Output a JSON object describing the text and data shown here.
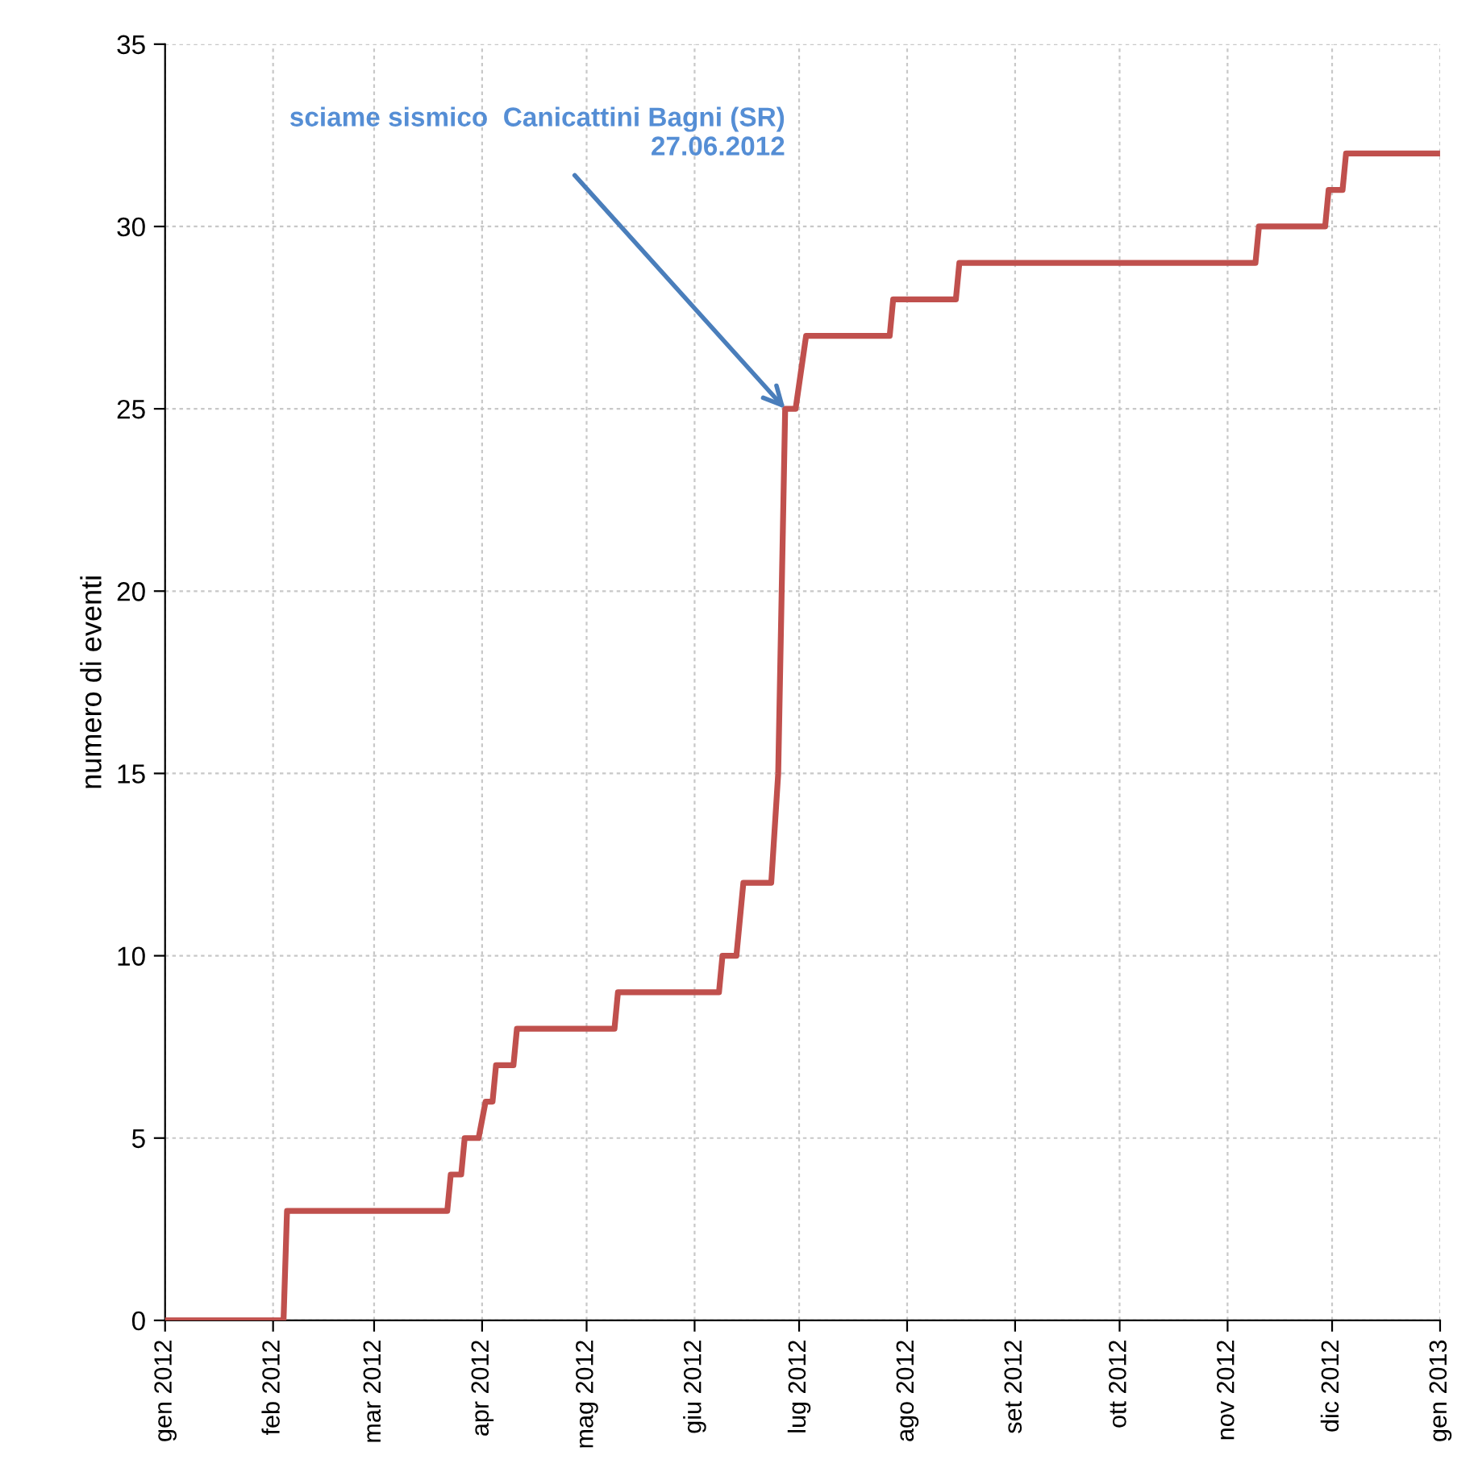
{
  "chart_data": {
    "type": "line",
    "ylabel": "numero di eventi",
    "x": [
      "2012-01-01",
      "2012-02-04",
      "2012-02-05",
      "2012-03-22",
      "2012-03-23",
      "2012-03-26",
      "2012-03-27",
      "2012-03-31",
      "2012-04-02",
      "2012-04-04",
      "2012-04-05",
      "2012-04-10",
      "2012-04-11",
      "2012-05-09",
      "2012-05-10",
      "2012-06-08",
      "2012-06-09",
      "2012-06-13",
      "2012-06-15",
      "2012-06-23",
      "2012-06-25",
      "2012-06-27",
      "2012-06-30",
      "2012-07-03",
      "2012-07-27",
      "2012-07-28",
      "2012-08-15",
      "2012-08-16",
      "2012-11-09",
      "2012-11-10",
      "2012-11-29",
      "2012-11-30",
      "2012-12-04",
      "2012-12-05",
      "2013-01-01"
    ],
    "series": [
      {
        "color": "#c0504d",
        "values": [
          0,
          0,
          3,
          3,
          4,
          4,
          5,
          5,
          6,
          6,
          7,
          7,
          8,
          8,
          9,
          9,
          10,
          10,
          12,
          12,
          15,
          25,
          25,
          27,
          27,
          28,
          28,
          29,
          29,
          30,
          30,
          31,
          31,
          32,
          32
        ]
      }
    ],
    "xlim": [
      "2012-01-01",
      "2013-01-01"
    ],
    "xticks": [
      {
        "value": "2012-01-01",
        "label": "gen 2012"
      },
      {
        "value": "2012-02-01",
        "label": "feb 2012"
      },
      {
        "value": "2012-03-01",
        "label": "mar 2012"
      },
      {
        "value": "2012-04-01",
        "label": "apr 2012"
      },
      {
        "value": "2012-05-01",
        "label": "mag 2012"
      },
      {
        "value": "2012-06-01",
        "label": "giu 2012"
      },
      {
        "value": "2012-07-01",
        "label": "lug 2012"
      },
      {
        "value": "2012-08-01",
        "label": "ago 2012"
      },
      {
        "value": "2012-09-01",
        "label": "set 2012"
      },
      {
        "value": "2012-10-01",
        "label": "ott 2012"
      },
      {
        "value": "2012-11-01",
        "label": "nov 2012"
      },
      {
        "value": "2012-12-01",
        "label": "dic 2012"
      },
      {
        "value": "2013-01-01",
        "label": "gen 2013"
      }
    ],
    "ylim": [
      0,
      35
    ],
    "yticks": [
      0,
      5,
      10,
      15,
      20,
      25,
      30,
      35
    ],
    "grid": true,
    "marker": "none",
    "line_style": "solid",
    "annotations": [
      {
        "text": "sciame sismico  Canicattini Bagni (SR)\n27.06.2012",
        "x": "2012-06-27",
        "y": 25
      }
    ]
  }
}
